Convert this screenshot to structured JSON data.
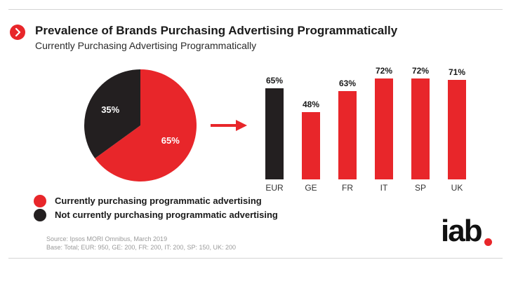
{
  "header": {
    "title": "Prevalence of Brands Purchasing Advertising Programmatically",
    "subtitle": "Currently Purchasing Advertising Programmatically"
  },
  "colors": {
    "red": "#e8262a",
    "black": "#231f20"
  },
  "icons": {
    "header_icon": "chevron-right-icon",
    "arrow": "arrow-right-icon"
  },
  "chart_data": [
    {
      "type": "pie",
      "slices": [
        {
          "label": "Currently purchasing programmatic advertising",
          "value": 65,
          "value_label": "65%",
          "color": "#e8262a"
        },
        {
          "label": "Not currently purchasing programmatic advertising",
          "value": 35,
          "value_label": "35%",
          "color": "#231f20"
        }
      ]
    },
    {
      "type": "bar",
      "categories": [
        "EUR",
        "GE",
        "FR",
        "IT",
        "SP",
        "UK"
      ],
      "values": [
        65,
        48,
        63,
        72,
        72,
        71
      ],
      "value_labels": [
        "65%",
        "48%",
        "63%",
        "72%",
        "72%",
        "71%"
      ],
      "colors": [
        "#231f20",
        "#e8262a",
        "#e8262a",
        "#e8262a",
        "#e8262a",
        "#e8262a"
      ],
      "ylim": [
        0,
        80
      ]
    }
  ],
  "legend": [
    {
      "label": "Currently purchasing programmatic advertising",
      "color": "#e8262a"
    },
    {
      "label": "Not currently purchasing programmatic advertising",
      "color": "#231f20"
    }
  ],
  "source": {
    "line1": "Source: Ipsos MORI Omnibus, March 2019",
    "line2": "Base: Total; EUR: 950, GE: 200, FR: 200, IT: 200, SP: 150, UK: 200"
  },
  "logo": {
    "text": "iab"
  }
}
